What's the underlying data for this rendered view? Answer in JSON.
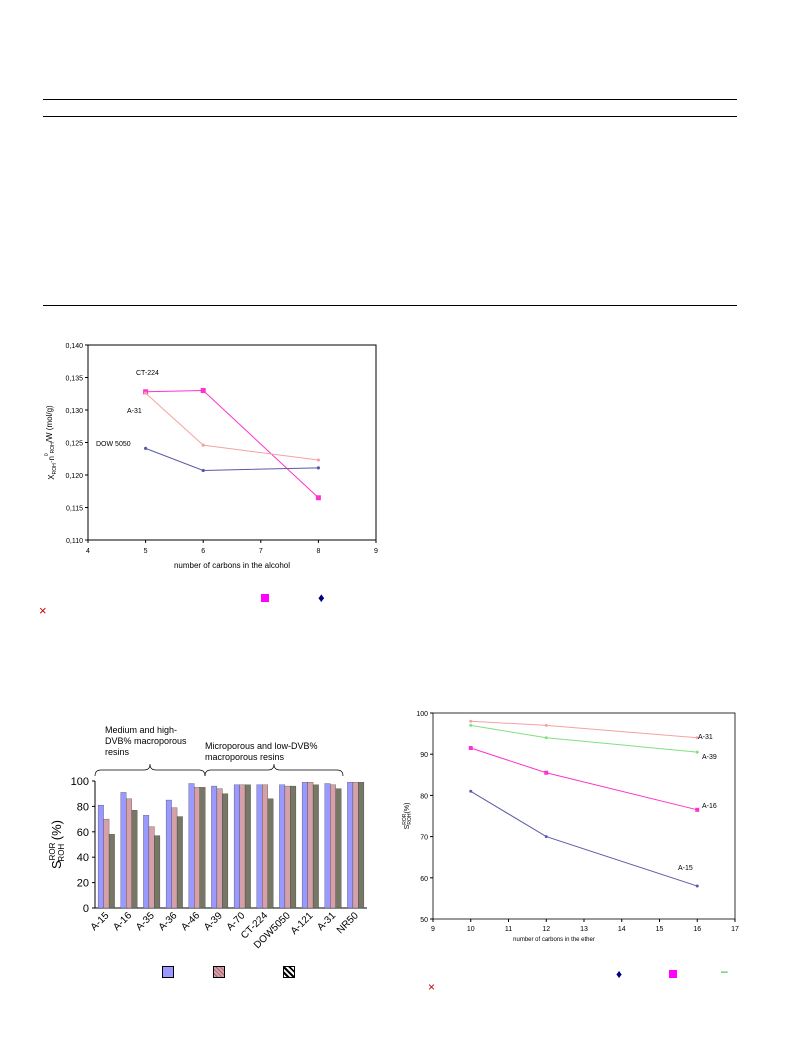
{
  "colors": {
    "pink_series": "#f4a3a0",
    "magenta_series": "#ff33cc",
    "navy_series": "#5a5aa8",
    "green_series": "#80e080",
    "bar_a": "#9999ff",
    "bar_b": "#d6a0a8",
    "bar_c": "#777766",
    "legend_magenta": "#ff00ff",
    "legend_navy": "#000080",
    "legend_cross": "#cc0000",
    "legend_green": "#00aa00"
  },
  "legend_glyphs": {
    "cross": "×",
    "diamond": "♦",
    "dash": "–"
  },
  "chart_data": [
    {
      "type": "line",
      "title": "",
      "xlabel": "number of carbons in the alcohol",
      "ylabel_main": "X",
      "ylabel_sub1": "ROH",
      "ylabel_mid": "·n",
      "ylabel_sup": "0",
      "ylabel_sub2": "ROH",
      "ylabel_end": "/W  (mol/g)",
      "xlim": [
        4,
        9
      ],
      "ylim": [
        0.11,
        0.14
      ],
      "xticks": [
        "4",
        "5",
        "6",
        "7",
        "8",
        "9"
      ],
      "yticks": [
        "0,110",
        "0,115",
        "0,120",
        "0,125",
        "0,130",
        "0,135",
        "0,140"
      ],
      "x": [
        5,
        6,
        8
      ],
      "series": [
        {
          "name": "CT-224",
          "values": [
            0.1328,
            0.133,
            0.1165
          ]
        },
        {
          "name": "A-31",
          "values": [
            0.1326,
            0.1246,
            0.1223
          ]
        },
        {
          "name": "DOW 5050",
          "values": [
            0.1241,
            0.1207,
            0.1211
          ]
        }
      ]
    },
    {
      "type": "bar",
      "xlabel": "",
      "ylabel_main": "S",
      "ylabel_sup": "ROR",
      "ylabel_sub": "ROH",
      "ylabel_end": "(%)",
      "ylim": [
        0,
        100
      ],
      "yticks": [
        "0",
        "20",
        "40",
        "60",
        "80",
        "100"
      ],
      "categories": [
        "A-15",
        "A-16",
        "A-35",
        "A-36",
        "A-46",
        "A-39",
        "A-70",
        "CT-224",
        "DOW5050",
        "A-121",
        "A-31",
        "NR50"
      ],
      "series": [
        {
          "values": [
            81,
            91,
            73,
            85,
            98,
            96,
            97,
            97,
            97,
            99,
            98,
            99
          ]
        },
        {
          "values": [
            70,
            86,
            64,
            79,
            95,
            94,
            97,
            97,
            96,
            99,
            97,
            99
          ]
        },
        {
          "values": [
            58,
            77,
            57,
            72,
            95,
            90,
            97,
            86,
            96,
            97,
            94,
            99
          ]
        }
      ],
      "annotations": [
        {
          "line1": "Medium and high-",
          "line2": "DVB% macroporous",
          "line3": "resins"
        },
        {
          "line1": "Microporous and low-DVB%",
          "line2": "macroporous resins"
        }
      ]
    },
    {
      "type": "line",
      "xlabel": "number of carbons in the ether",
      "ylabel_main": "S",
      "ylabel_sup": "ROR",
      "ylabel_sub": "ROH",
      "ylabel_end": "(%)",
      "xlim": [
        9,
        17
      ],
      "ylim": [
        50,
        100
      ],
      "xticks": [
        "9",
        "10",
        "11",
        "12",
        "13",
        "14",
        "15",
        "16",
        "17"
      ],
      "yticks": [
        "50",
        "60",
        "70",
        "80",
        "90",
        "100"
      ],
      "x": [
        10,
        12,
        16
      ],
      "series": [
        {
          "name": "A-31",
          "values": [
            98.0,
            97.0,
            94.0
          ]
        },
        {
          "name": "A-39",
          "values": [
            97.0,
            94.0,
            90.5
          ]
        },
        {
          "name": "A-16",
          "values": [
            91.5,
            85.5,
            76.5
          ]
        },
        {
          "name": "A-15",
          "values": [
            81.0,
            70.0,
            58.0
          ]
        }
      ]
    }
  ]
}
